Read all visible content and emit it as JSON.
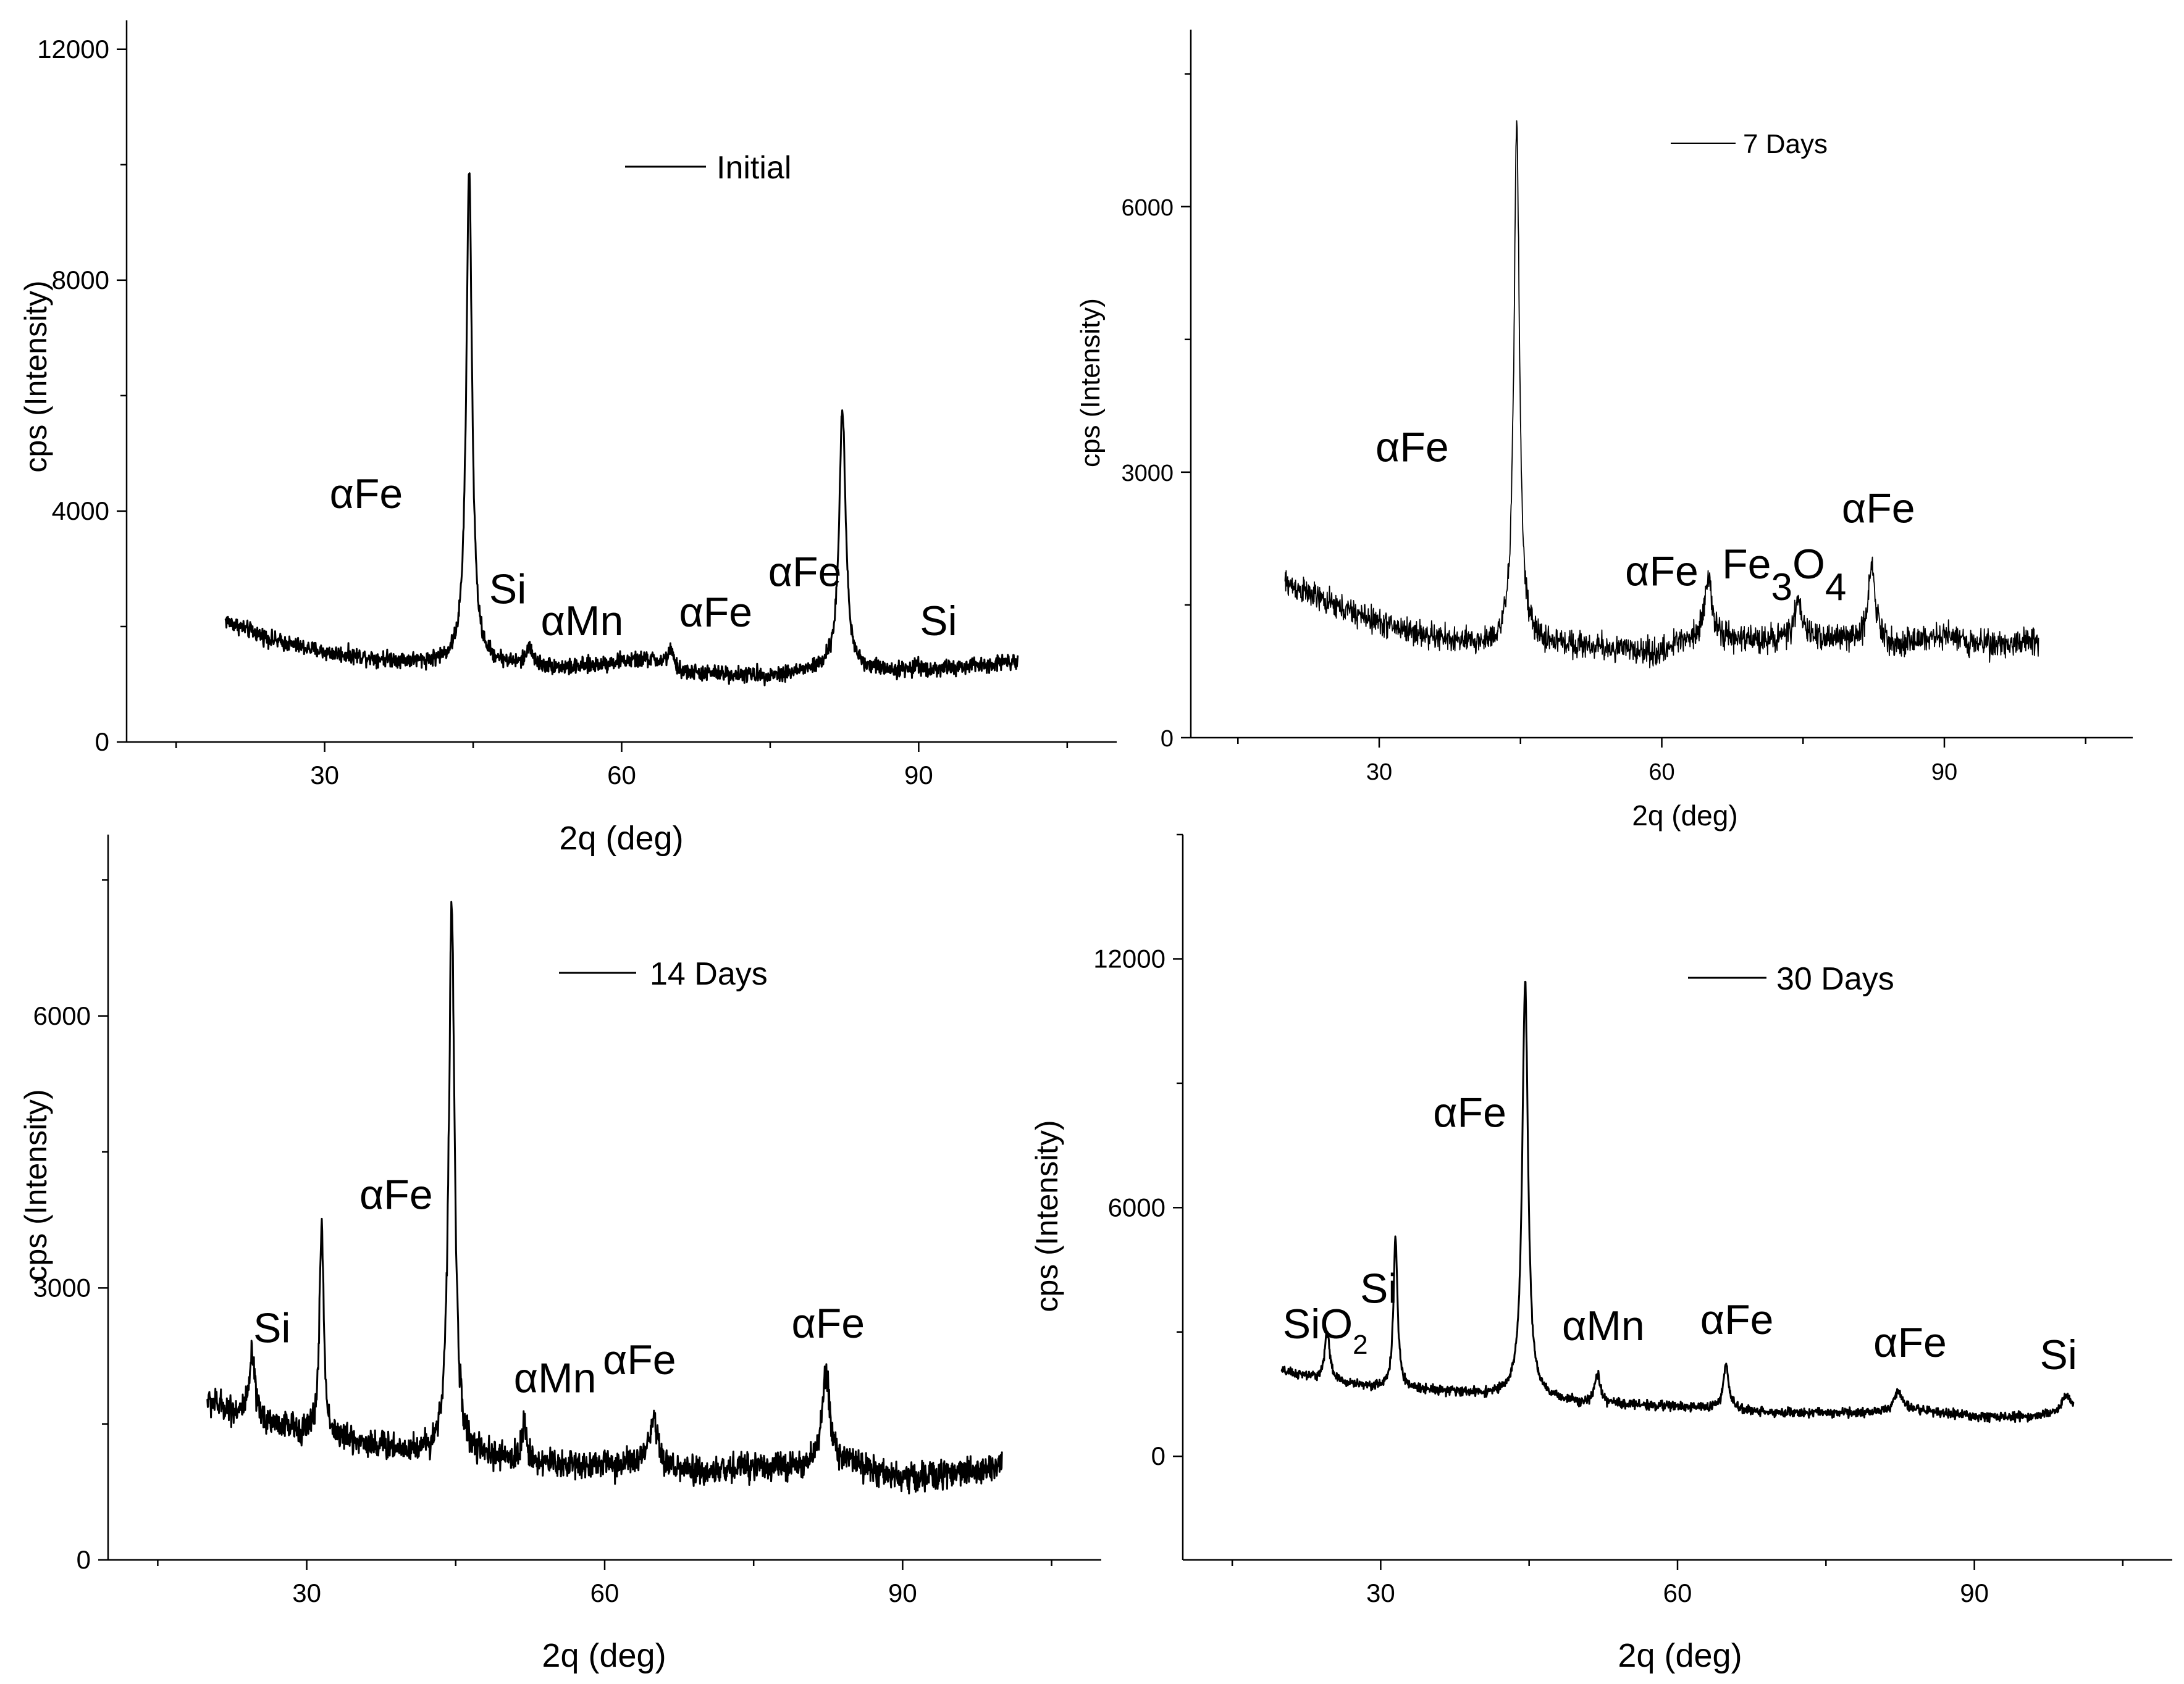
{
  "chart_data": [
    {
      "type": "line",
      "title": "",
      "legend": "Initial",
      "legend_position": "top-center",
      "xlabel": "2q (deg)",
      "ylabel": "cps (Intensity)",
      "xlim": [
        10,
        110
      ],
      "ylim": [
        0,
        12500
      ],
      "xticks": [
        30,
        60,
        90
      ],
      "yticks": [
        0,
        4000,
        8000,
        12000
      ],
      "baseline": [
        [
          20,
          2100
        ],
        [
          25,
          1750
        ],
        [
          30,
          1550
        ],
        [
          35,
          1450
        ],
        [
          40,
          1380
        ],
        [
          44,
          1400
        ],
        [
          55,
          1280
        ],
        [
          60,
          1400
        ],
        [
          63,
          1420
        ],
        [
          66,
          1200
        ],
        [
          75,
          1150
        ],
        [
          80,
          1250
        ],
        [
          85,
          1250
        ],
        [
          90,
          1230
        ],
        [
          95,
          1300
        ],
        [
          100,
          1420
        ]
      ],
      "noise": 140,
      "peaks": [
        [
          44.6,
          8500,
          0.35
        ],
        [
          50.7,
          350,
          0.3
        ],
        [
          64.9,
          300,
          0.4
        ],
        [
          82.3,
          4500,
          0.4
        ],
        [
          90.0,
          100,
          0.4
        ]
      ],
      "annotations": [
        {
          "text": "αFe",
          "x": 34.2,
          "y": 4050
        },
        {
          "text": "Si",
          "x": 48.5,
          "y": 2400
        },
        {
          "text": "αMn",
          "x": 56.0,
          "y": 1850
        },
        {
          "text": "αFe",
          "x": 69.5,
          "y": 2000
        },
        {
          "text": "αFe",
          "x": 78.5,
          "y": 2700
        },
        {
          "text": "Si",
          "x": 92.0,
          "y": 1850
        }
      ]
    },
    {
      "type": "line",
      "title": "",
      "legend": "7 Days",
      "legend_position": "top-center",
      "xlabel": "2q (deg)",
      "ylabel": "cps (Intensity)",
      "xlim": [
        10,
        110
      ],
      "ylim": [
        0,
        8000
      ],
      "xticks": [
        30,
        60,
        90
      ],
      "yticks": [
        0,
        3000,
        6000
      ],
      "baseline": [
        [
          20,
          1750
        ],
        [
          25,
          1500
        ],
        [
          30,
          1300
        ],
        [
          35,
          1150
        ],
        [
          40,
          1050
        ],
        [
          44,
          1050
        ],
        [
          50,
          1050
        ],
        [
          55,
          1000
        ],
        [
          60,
          950
        ],
        [
          62,
          1100
        ],
        [
          70,
          1100
        ],
        [
          75,
          1150
        ],
        [
          85,
          1050
        ],
        [
          90,
          1150
        ],
        [
          95,
          1050
        ],
        [
          100,
          1100
        ]
      ],
      "noise": 150,
      "peaks": [
        [
          44.6,
          5900,
          0.35
        ],
        [
          64.9,
          700,
          0.5
        ],
        [
          74.5,
          400,
          0.4
        ],
        [
          82.3,
          900,
          0.45
        ]
      ],
      "annotations": [
        {
          "text": "αFe",
          "x": 33.5,
          "y": 3120
        },
        {
          "text": "αFe",
          "x": 60.0,
          "y": 1720
        },
        {
          "text": "Fe3O4",
          "x": 73.0,
          "y": 1800
        },
        {
          "text": "αFe",
          "x": 83.0,
          "y": 2430
        }
      ]
    },
    {
      "type": "line",
      "title": "",
      "legend": "14 Days",
      "legend_position": "top-center",
      "xlabel": "2q (deg)",
      "ylabel": "cps (Intensity)",
      "xlim": [
        10,
        110
      ],
      "ylim": [
        0,
        8000
      ],
      "xticks": [
        30,
        60,
        90
      ],
      "yticks": [
        0,
        3000,
        6000
      ],
      "baseline": [
        [
          20,
          1750
        ],
        [
          25,
          1550
        ],
        [
          30,
          1400
        ],
        [
          35,
          1300
        ],
        [
          40,
          1200
        ],
        [
          44,
          1150
        ],
        [
          50,
          1100
        ],
        [
          55,
          1050
        ],
        [
          60,
          1050
        ],
        [
          63,
          1050
        ],
        [
          70,
          950
        ],
        [
          75,
          1050
        ],
        [
          80,
          1000
        ],
        [
          85,
          1050
        ],
        [
          90,
          900
        ],
        [
          95,
          950
        ],
        [
          100,
          1050
        ]
      ],
      "noise": 160,
      "peaks": [
        [
          24.5,
          700,
          0.3
        ],
        [
          31.5,
          2350,
          0.25
        ],
        [
          44.6,
          6100,
          0.35
        ],
        [
          51.9,
          400,
          0.3
        ],
        [
          64.9,
          500,
          0.5
        ],
        [
          82.3,
          1050,
          0.5
        ]
      ],
      "annotations": [
        {
          "text": "Si",
          "x": 26.5,
          "y": 2400
        },
        {
          "text": "αFe",
          "x": 39.0,
          "y": 3870
        },
        {
          "text": "αMn",
          "x": 55.0,
          "y": 1850
        },
        {
          "text": "αFe",
          "x": 63.5,
          "y": 2050
        },
        {
          "text": "αFe",
          "x": 82.5,
          "y": 2450
        }
      ]
    },
    {
      "type": "line",
      "title": "",
      "legend": "30 Days",
      "legend_position": "top-center",
      "xlabel": "2q (deg)",
      "ylabel": "cps (Intensity)",
      "xlim": [
        10,
        110
      ],
      "ylim": [
        -2500,
        15000
      ],
      "xticks": [
        30,
        60,
        90
      ],
      "yticks": [
        0,
        6000,
        12000
      ],
      "baseline": [
        [
          20,
          2050
        ],
        [
          25,
          1800
        ],
        [
          30,
          1650
        ],
        [
          35,
          1600
        ],
        [
          40,
          1500
        ],
        [
          44,
          1450
        ],
        [
          50,
          1300
        ],
        [
          55,
          1250
        ],
        [
          60,
          1200
        ],
        [
          65,
          1150
        ],
        [
          70,
          1050
        ],
        [
          75,
          1050
        ],
        [
          80,
          1050
        ],
        [
          85,
          1100
        ],
        [
          90,
          950
        ],
        [
          95,
          950
        ],
        [
          100,
          1100
        ]
      ],
      "noise": 110,
      "peaks": [
        [
          24.6,
          1200,
          0.3
        ],
        [
          31.5,
          3600,
          0.25
        ],
        [
          44.6,
          10000,
          0.35
        ],
        [
          51.9,
          700,
          0.3
        ],
        [
          64.9,
          1100,
          0.3
        ],
        [
          82.3,
          500,
          0.5
        ],
        [
          99.3,
          400,
          0.5
        ]
      ],
      "annotations": [
        {
          "text": "SiO2",
          "x": 24.4,
          "y": 2850
        },
        {
          "text": "Si",
          "x": 29.8,
          "y": 3700
        },
        {
          "text": "αFe",
          "x": 39.0,
          "y": 7950
        },
        {
          "text": "αMn",
          "x": 52.5,
          "y": 2800
        },
        {
          "text": "αFe",
          "x": 66.0,
          "y": 2950
        },
        {
          "text": "αFe",
          "x": 83.5,
          "y": 2400
        },
        {
          "text": "Si",
          "x": 98.5,
          "y": 2100
        }
      ]
    }
  ]
}
